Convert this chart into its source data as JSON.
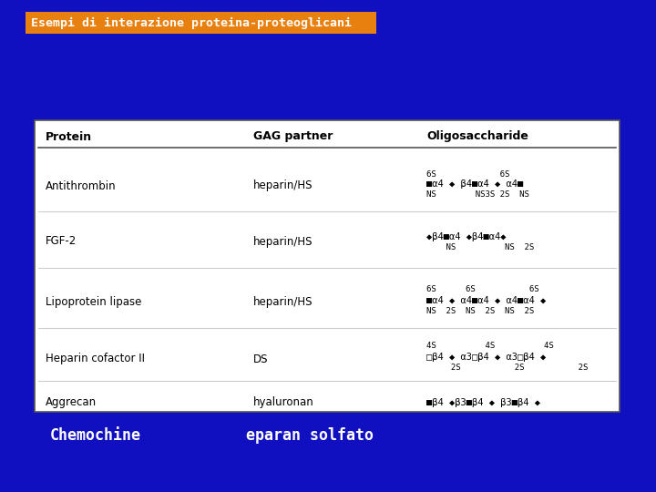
{
  "background_color": "#1010c0",
  "title_text": "Esempi di interazione proteina-proteoglicani",
  "title_bg": "#e88010",
  "title_fg": "#ffffff",
  "header_row": [
    "Protein",
    "GAG partner",
    "Oligosaccharide"
  ],
  "rows": [
    [
      "Antithrombin",
      "heparin/HS"
    ],
    [
      "FGF-2",
      "heparin/HS"
    ],
    [
      "Lipoprotein lipase",
      "heparin/HS"
    ],
    [
      "Heparin cofactor II",
      "DS"
    ],
    [
      "Aggrecan",
      "hyaluronan"
    ]
  ],
  "oligo": [
    [
      "6S",
      "6S",
      "■α4 ◆ β4■α4 ◆ α4■",
      "NS       NS3S 2S  NS"
    ],
    [
      "◆β4■α4 ◆β4■α4◆",
      "     NS         NS  2S"
    ],
    [
      "6S",
      "6S",
      "6S",
      "■α4 ◆ α4■α4 ◆ α4■α4 ◆",
      "NS  2S   NS  2S   NS  2S"
    ],
    [
      "4S",
      "4S",
      "4S",
      "□β4 ◆ α3□β4 ◆ α3□β4 ◆",
      "     2S              2S             2S"
    ],
    [
      "■β4 ◆β3■β4 ◆ β3■β4 ◆"
    ]
  ],
  "bottom_left": "Chemochine",
  "bottom_right": "eparan solfato",
  "bottom_color": "#ffffff"
}
